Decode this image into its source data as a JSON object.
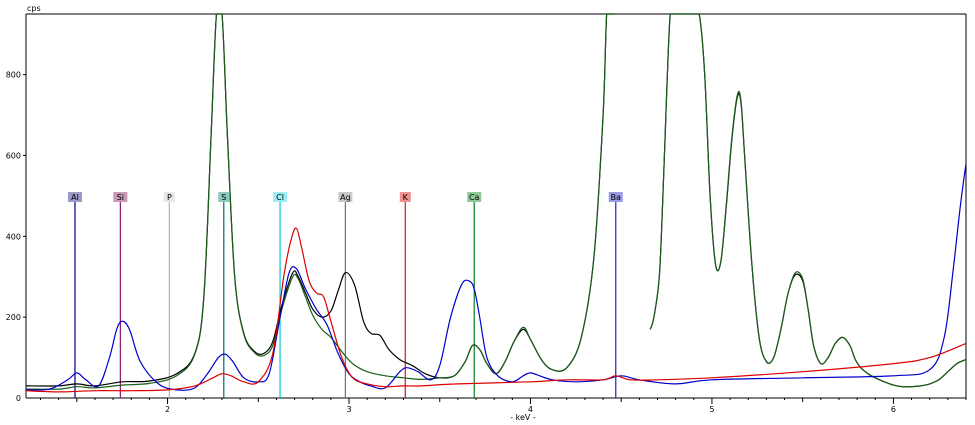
{
  "chart_data": {
    "type": "line",
    "title": "",
    "xlabel": "- keV -",
    "ylabel": "cps",
    "xlim": [
      1.22,
      6.4
    ],
    "ylim": [
      0,
      950
    ],
    "x_ticks": [
      "2",
      "3",
      "4",
      "5",
      "6"
    ],
    "y_ticks": [
      "200",
      "400",
      "600",
      "800"
    ],
    "y_origin_label": "0",
    "grid": false,
    "legend": "none",
    "element_markers": [
      {
        "symbol": "Al",
        "energy": 1.49,
        "color": "#00008b",
        "label_bg": "#9a9ac8"
      },
      {
        "symbol": "Si",
        "energy": 1.74,
        "color": "#8b1a6b",
        "label_bg": "#c89ab8"
      },
      {
        "symbol": "P",
        "energy": 2.01,
        "color": "#b4b4b4",
        "label_bg": "#e6e6e6"
      },
      {
        "symbol": "S",
        "energy": 2.31,
        "color": "#006b6b",
        "label_bg": "#8fc8c0"
      },
      {
        "symbol": "Cl",
        "energy": 2.62,
        "color": "#00c8d8",
        "label_bg": "#9eeef4"
      },
      {
        "symbol": "Ag",
        "energy": 2.98,
        "color": "#707070",
        "label_bg": "#c8c8c8"
      },
      {
        "symbol": "K",
        "energy": 3.31,
        "color": "#d01818",
        "label_bg": "#f09090"
      },
      {
        "symbol": "Ca",
        "energy": 3.69,
        "color": "#00801e",
        "label_bg": "#8fc896"
      },
      {
        "symbol": "Ba",
        "energy": 4.47,
        "color": "#2020c0",
        "label_bg": "#9a9ae6"
      }
    ],
    "series": [
      {
        "color": "#000000",
        "x": [
          1.22,
          1.4,
          1.5,
          1.6,
          1.75,
          1.9,
          2.05,
          2.15,
          2.2,
          2.24,
          2.27,
          2.3,
          2.33,
          2.37,
          2.42,
          2.48,
          2.53,
          2.58,
          2.63,
          2.69,
          2.72,
          2.76,
          2.8,
          2.85,
          2.9,
          2.94,
          2.98,
          3.03,
          3.08,
          3.12,
          3.17,
          3.22,
          3.28,
          3.35,
          3.42,
          3.5,
          3.58,
          3.64,
          3.68,
          3.72,
          3.76,
          3.81,
          3.86,
          3.91,
          3.96,
          4.0,
          4.06,
          4.12,
          4.2,
          4.28,
          4.35,
          4.4,
          4.42,
          4.44,
          4.46
        ],
        "y": [
          30,
          30,
          35,
          30,
          40,
          42,
          60,
          110,
          250,
          650,
          950,
          950,
          650,
          300,
          160,
          115,
          110,
          140,
          230,
          310,
          300,
          260,
          220,
          200,
          215,
          265,
          310,
          280,
          190,
          160,
          155,
          120,
          95,
          80,
          60,
          50,
          55,
          90,
          130,
          120,
          85,
          60,
          90,
          140,
          170,
          145,
          95,
          70,
          75,
          150,
          350,
          700,
          950,
          950,
          950
        ]
      },
      {
        "color": "#1a5f1a",
        "x": [
          1.22,
          1.4,
          1.5,
          1.6,
          1.75,
          1.9,
          2.05,
          2.15,
          2.2,
          2.24,
          2.27,
          2.3,
          2.33,
          2.37,
          2.42,
          2.48,
          2.53,
          2.58,
          2.63,
          2.69,
          2.72,
          2.76,
          2.8,
          2.85,
          2.9,
          2.96,
          3.02,
          3.1,
          3.2,
          3.3,
          3.4,
          3.5,
          3.58,
          3.64,
          3.68,
          3.72,
          3.76,
          3.81,
          3.86,
          3.91,
          3.96,
          4.0,
          4.06,
          4.12,
          4.2,
          4.28,
          4.35,
          4.4,
          4.42,
          4.44,
          4.46
        ],
        "y": [
          22,
          22,
          28,
          25,
          32,
          36,
          55,
          108,
          248,
          650,
          950,
          950,
          650,
          300,
          158,
          112,
          105,
          130,
          220,
          300,
          295,
          250,
          205,
          170,
          150,
          115,
          85,
          65,
          55,
          50,
          46,
          50,
          55,
          90,
          130,
          120,
          85,
          60,
          90,
          140,
          175,
          145,
          95,
          70,
          75,
          150,
          350,
          700,
          950,
          950,
          950
        ]
      },
      {
        "color": "#000000",
        "x": [
          4.66,
          4.68,
          4.71,
          4.73,
          4.75,
          4.77,
          4.79,
          4.82,
          4.86,
          4.9,
          4.93,
          4.96,
          4.99,
          5.02,
          5.05,
          5.08,
          5.11,
          5.14,
          5.16,
          5.18,
          5.22,
          5.26,
          5.3,
          5.34,
          5.38,
          5.42,
          5.46,
          5.5,
          5.53,
          5.56,
          5.6,
          5.64,
          5.68,
          5.72,
          5.76,
          5.79,
          5.82,
          5.86,
          5.9,
          5.95,
          6.0,
          6.05,
          6.1,
          6.15,
          6.2,
          6.25,
          6.3,
          6.35,
          6.4
        ],
        "y": [
          170,
          200,
          300,
          500,
          750,
          950,
          950,
          950,
          950,
          950,
          950,
          800,
          500,
          330,
          340,
          480,
          640,
          745,
          730,
          600,
          330,
          150,
          90,
          100,
          170,
          260,
          305,
          290,
          220,
          130,
          85,
          100,
          135,
          150,
          130,
          95,
          75,
          60,
          50,
          40,
          32,
          28,
          28,
          30,
          35,
          45,
          65,
          85,
          95
        ]
      },
      {
        "color": "#1a5f1a",
        "x": [
          4.66,
          4.68,
          4.71,
          4.73,
          4.75,
          4.77,
          4.79,
          4.82,
          4.86,
          4.9,
          4.93,
          4.96,
          4.99,
          5.02,
          5.05,
          5.08,
          5.11,
          5.14,
          5.16,
          5.18,
          5.22,
          5.26,
          5.3,
          5.34,
          5.38,
          5.42,
          5.46,
          5.5,
          5.53,
          5.56,
          5.6,
          5.64,
          5.68,
          5.72,
          5.76,
          5.79,
          5.82,
          5.86,
          5.9,
          5.95,
          6.0,
          6.05,
          6.1,
          6.15,
          6.2,
          6.25,
          6.3,
          6.35,
          6.4
        ],
        "y": [
          170,
          200,
          300,
          500,
          750,
          950,
          950,
          950,
          950,
          950,
          950,
          800,
          500,
          330,
          340,
          485,
          645,
          750,
          735,
          600,
          330,
          150,
          90,
          100,
          170,
          260,
          310,
          295,
          220,
          130,
          85,
          100,
          135,
          150,
          130,
          95,
          75,
          60,
          50,
          40,
          32,
          28,
          28,
          30,
          35,
          45,
          65,
          85,
          95
        ]
      },
      {
        "color": "#0000cc",
        "x": [
          1.22,
          1.35,
          1.45,
          1.5,
          1.55,
          1.62,
          1.68,
          1.72,
          1.75,
          1.79,
          1.85,
          1.95,
          2.05,
          2.15,
          2.22,
          2.28,
          2.32,
          2.36,
          2.42,
          2.5,
          2.56,
          2.62,
          2.67,
          2.71,
          2.76,
          2.82,
          2.88,
          2.94,
          3.0,
          3.06,
          3.12,
          3.2,
          3.28,
          3.32,
          3.38,
          3.45,
          3.5,
          3.56,
          3.62,
          3.66,
          3.69,
          3.72,
          3.76,
          3.82,
          3.9,
          3.96,
          4.0,
          4.05,
          4.12,
          4.25,
          4.4,
          4.5,
          4.6,
          4.8,
          5.0,
          5.5,
          6.0,
          6.2,
          6.28,
          6.33,
          6.37,
          6.4
        ],
        "y": [
          20,
          22,
          45,
          62,
          45,
          30,
          100,
          170,
          190,
          170,
          90,
          35,
          20,
          25,
          60,
          100,
          108,
          90,
          50,
          40,
          60,
          200,
          310,
          320,
          270,
          220,
          180,
          110,
          60,
          40,
          30,
          25,
          65,
          75,
          65,
          45,
          80,
          200,
          280,
          290,
          270,
          200,
          100,
          55,
          40,
          55,
          62,
          55,
          45,
          40,
          45,
          55,
          45,
          35,
          45,
          50,
          55,
          70,
          150,
          320,
          480,
          580
        ]
      },
      {
        "color": "#dd0000",
        "x": [
          1.22,
          1.4,
          1.6,
          1.8,
          2.0,
          2.15,
          2.25,
          2.3,
          2.35,
          2.42,
          2.5,
          2.58,
          2.64,
          2.68,
          2.71,
          2.74,
          2.78,
          2.82,
          2.86,
          2.9,
          2.96,
          3.02,
          3.1,
          3.2,
          3.3,
          3.4,
          3.6,
          4.0,
          4.2,
          4.4,
          4.47,
          4.55,
          4.7,
          5.0,
          5.5,
          6.0,
          6.2,
          6.4
        ],
        "y": [
          18,
          15,
          18,
          18,
          20,
          30,
          50,
          60,
          55,
          40,
          40,
          110,
          300,
          390,
          420,
          370,
          290,
          260,
          250,
          190,
          100,
          50,
          35,
          28,
          30,
          30,
          35,
          40,
          45,
          45,
          55,
          45,
          45,
          50,
          65,
          85,
          100,
          135
        ]
      }
    ]
  }
}
